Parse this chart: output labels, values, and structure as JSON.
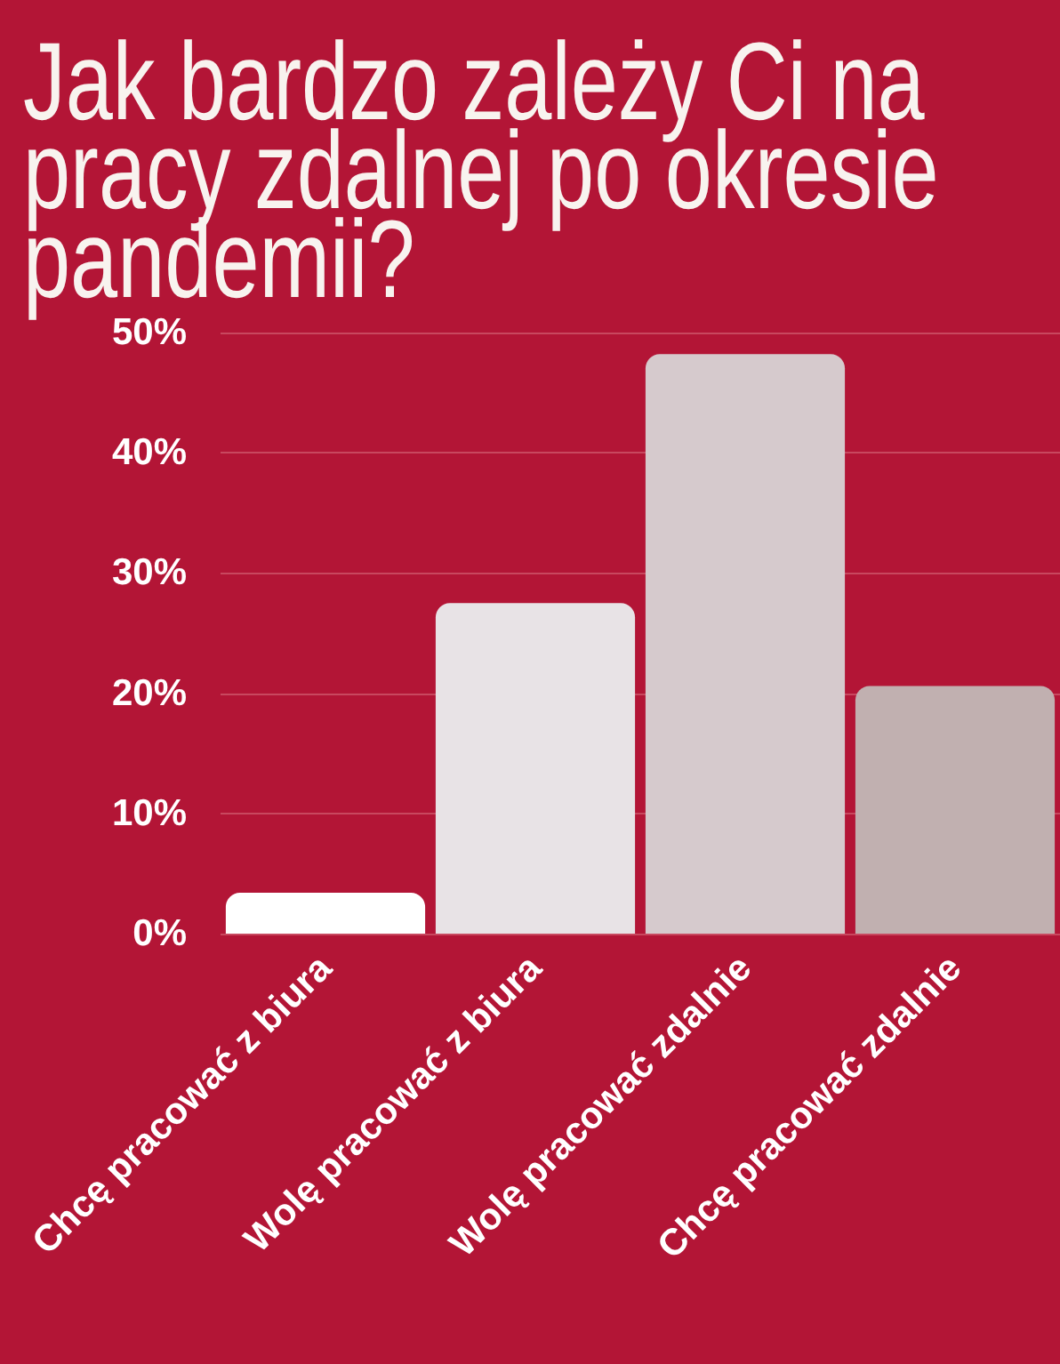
{
  "chart_data": {
    "type": "bar",
    "title": "Jak bardzo zależy Ci na pracy zdalnej po okresie pandemii?",
    "categories": [
      "Chcę pracować z biura",
      "Wolę pracować z biura",
      "Wolę pracować zdalnie",
      "Chcę pracować zdalnie"
    ],
    "values": [
      3.4,
      27.5,
      48.2,
      20.6
    ],
    "colors": [
      "#ffffff",
      "#e8e3e6",
      "#d6cacd",
      "#c1b0b0"
    ],
    "ylim": [
      0,
      50
    ],
    "yticks": [
      {
        "value": 0,
        "label": "0%"
      },
      {
        "value": 10,
        "label": "10%"
      },
      {
        "value": 20,
        "label": "20%"
      },
      {
        "value": 30,
        "label": "30%"
      },
      {
        "value": 40,
        "label": "40%"
      },
      {
        "value": 50,
        "label": "50%"
      }
    ],
    "grid": "y"
  }
}
